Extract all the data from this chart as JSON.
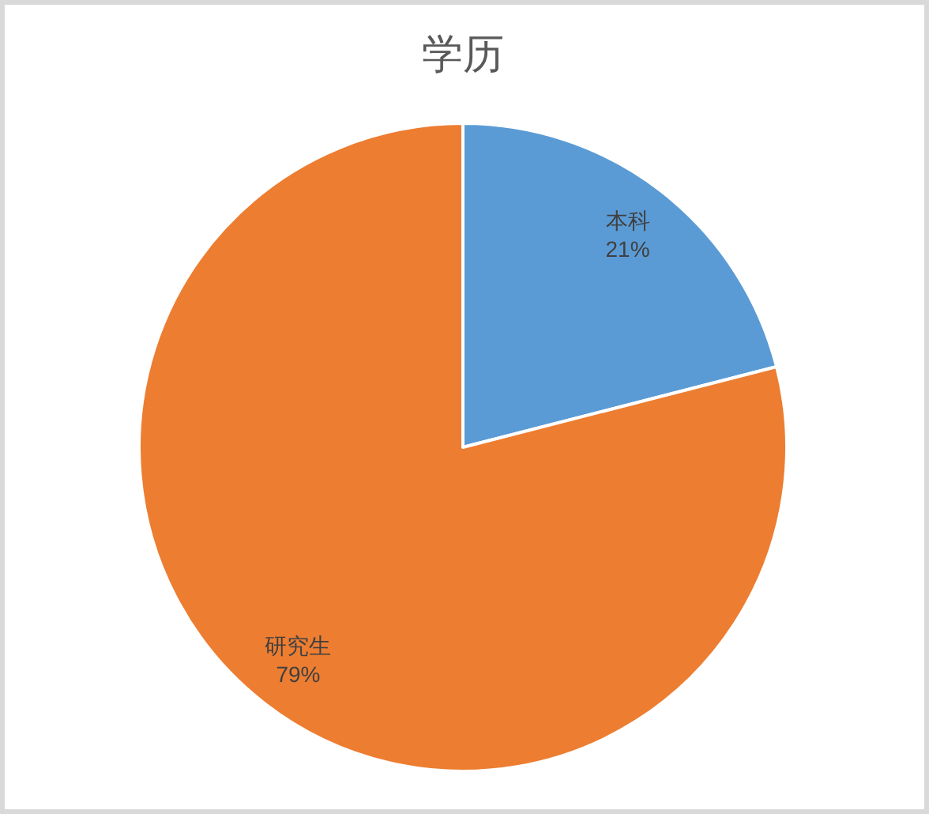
{
  "chart_data": {
    "type": "pie",
    "title": "学历",
    "categories": [
      "本科",
      "研究生"
    ],
    "values": [
      21,
      79
    ],
    "colors": [
      "#5b9bd5",
      "#ed7d31"
    ],
    "value_labels": [
      "21%",
      "79%"
    ]
  }
}
